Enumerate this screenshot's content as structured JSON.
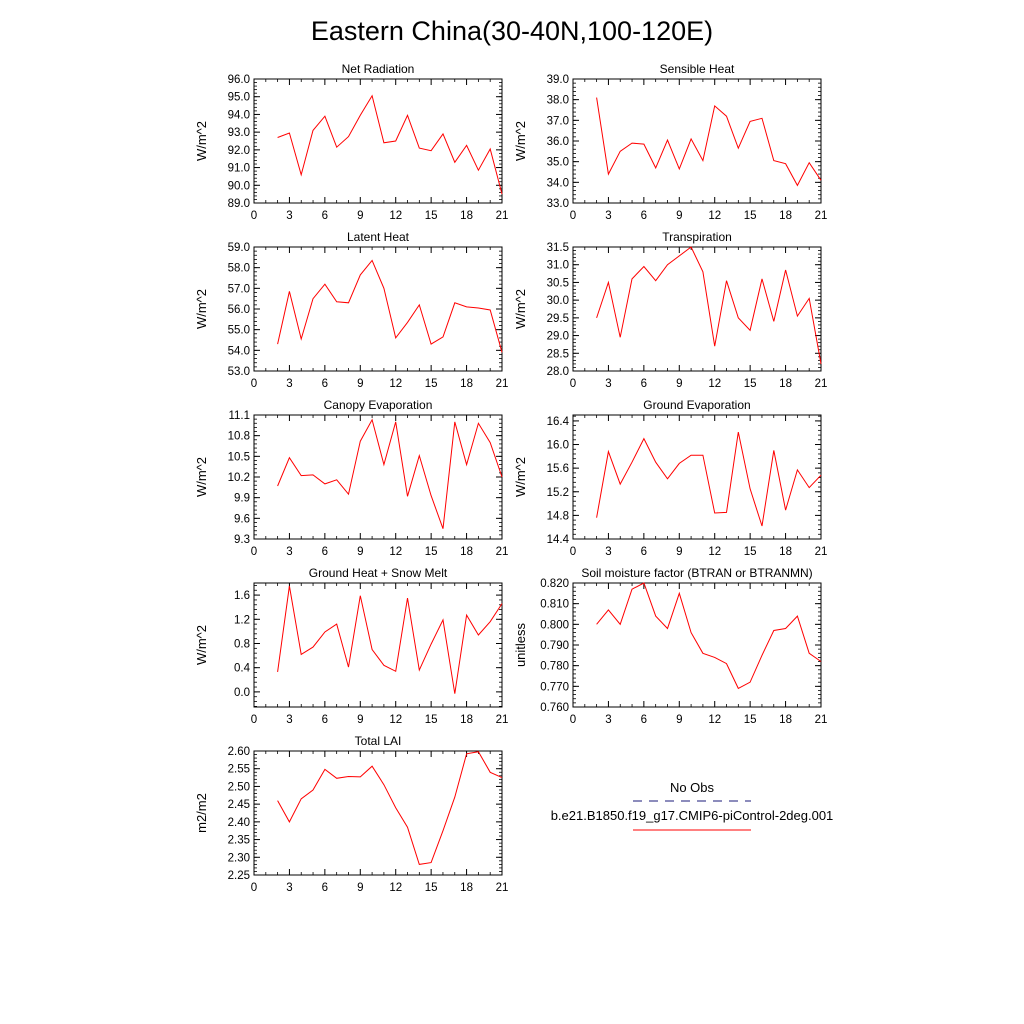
{
  "title": "Eastern China(30-40N,100-120E)",
  "legend": {
    "obs_label": "No Obs",
    "case_label": "b.e21.B1850.f19_g17.CMIP6-piControl-2deg.001",
    "obs_color": "#1a1a7a",
    "case_color": "#ff0000"
  },
  "chart_data": [
    {
      "type": "line",
      "title": "Net Radiation",
      "ylabel": "W/m^2",
      "xlim": [
        0,
        21
      ],
      "ylim": [
        89.0,
        96.0
      ],
      "xticks": [
        "0",
        "3",
        "6",
        "9",
        "12",
        "15",
        "18",
        "21"
      ],
      "yticks": [
        "89.0",
        "90.0",
        "91.0",
        "92.0",
        "93.0",
        "94.0",
        "95.0",
        "96.0"
      ],
      "series": [
        {
          "x": [
            2,
            3,
            4,
            5,
            6,
            7,
            8,
            9,
            10,
            11,
            12,
            13,
            14,
            15,
            16,
            17,
            18,
            19,
            20,
            21
          ],
          "values": [
            92.7,
            92.95,
            90.6,
            93.1,
            93.9,
            92.15,
            92.75,
            93.95,
            95.05,
            92.4,
            92.5,
            93.95,
            92.1,
            91.95,
            92.9,
            91.3,
            92.25,
            90.85,
            92.05,
            89.5
          ]
        }
      ]
    },
    {
      "type": "line",
      "title": "Sensible Heat",
      "ylabel": "W/m^2",
      "xlim": [
        0,
        21
      ],
      "ylim": [
        33.0,
        39.0
      ],
      "xticks": [
        "0",
        "3",
        "6",
        "9",
        "12",
        "15",
        "18",
        "21"
      ],
      "yticks": [
        "33.0",
        "34.0",
        "35.0",
        "36.0",
        "37.0",
        "38.0",
        "39.0"
      ],
      "series": [
        {
          "x": [
            2,
            3,
            4,
            5,
            6,
            7,
            8,
            9,
            10,
            11,
            12,
            13,
            14,
            15,
            16,
            17,
            18,
            19,
            20,
            21
          ],
          "values": [
            38.1,
            34.4,
            35.5,
            35.9,
            35.85,
            34.7,
            36.05,
            34.65,
            36.1,
            35.05,
            37.7,
            37.2,
            35.65,
            36.95,
            37.1,
            35.05,
            34.9,
            33.85,
            34.95,
            34.1
          ]
        }
      ]
    },
    {
      "type": "line",
      "title": "Latent Heat",
      "ylabel": "W/m^2",
      "xlim": [
        0,
        21
      ],
      "ylim": [
        53.0,
        59.0
      ],
      "xticks": [
        "0",
        "3",
        "6",
        "9",
        "12",
        "15",
        "18",
        "21"
      ],
      "yticks": [
        "53.0",
        "54.0",
        "55.0",
        "56.0",
        "57.0",
        "58.0",
        "59.0"
      ],
      "series": [
        {
          "x": [
            2,
            3,
            4,
            5,
            6,
            7,
            8,
            9,
            10,
            11,
            12,
            13,
            14,
            15,
            16,
            17,
            18,
            19,
            20,
            21
          ],
          "values": [
            54.3,
            56.85,
            54.55,
            56.5,
            57.2,
            56.35,
            56.3,
            57.65,
            58.35,
            57.0,
            54.6,
            55.35,
            56.2,
            54.3,
            54.65,
            56.3,
            56.1,
            56.05,
            55.95,
            53.9
          ]
        }
      ]
    },
    {
      "type": "line",
      "title": "Transpiration",
      "ylabel": "W/m^2",
      "xlim": [
        0,
        21
      ],
      "ylim": [
        28.0,
        31.5
      ],
      "xticks": [
        "0",
        "3",
        "6",
        "9",
        "12",
        "15",
        "18",
        "21"
      ],
      "yticks": [
        "28.0",
        "28.5",
        "29.0",
        "29.5",
        "30.0",
        "30.5",
        "31.0",
        "31.5"
      ],
      "series": [
        {
          "x": [
            2,
            3,
            4,
            5,
            6,
            7,
            8,
            9,
            10,
            11,
            12,
            13,
            14,
            15,
            16,
            17,
            18,
            19,
            20,
            21
          ],
          "values": [
            29.5,
            30.5,
            28.95,
            30.6,
            30.95,
            30.55,
            31.0,
            31.25,
            31.5,
            30.8,
            28.7,
            30.55,
            29.5,
            29.15,
            30.6,
            29.4,
            30.85,
            29.55,
            30.05,
            28.2
          ]
        }
      ]
    },
    {
      "type": "line",
      "title": "Canopy Evaporation",
      "ylabel": "W/m^2",
      "xlim": [
        0,
        21
      ],
      "ylim": [
        9.3,
        11.1
      ],
      "xticks": [
        "0",
        "3",
        "6",
        "9",
        "12",
        "15",
        "18",
        "21"
      ],
      "yticks": [
        "9.3",
        "9.6",
        "9.9",
        "10.2",
        "10.5",
        "10.8",
        "11.1"
      ],
      "series": [
        {
          "x": [
            2,
            3,
            4,
            5,
            6,
            7,
            8,
            9,
            10,
            11,
            12,
            13,
            14,
            15,
            16,
            17,
            18,
            19,
            20,
            21
          ],
          "values": [
            10.07,
            10.48,
            10.22,
            10.23,
            10.1,
            10.16,
            9.95,
            10.72,
            11.03,
            10.38,
            11.0,
            9.92,
            10.51,
            9.93,
            9.45,
            11.0,
            10.38,
            10.98,
            10.7,
            10.2
          ]
        }
      ]
    },
    {
      "type": "line",
      "title": "Ground Evaporation",
      "ylabel": "W/m^2",
      "xlim": [
        0,
        21
      ],
      "ylim": [
        14.4,
        16.5
      ],
      "xticks": [
        "0",
        "3",
        "6",
        "9",
        "12",
        "15",
        "18",
        "21"
      ],
      "yticks": [
        "14.4",
        "14.8",
        "15.2",
        "15.6",
        "16.0",
        "16.4"
      ],
      "series": [
        {
          "x": [
            2,
            3,
            4,
            5,
            6,
            7,
            8,
            9,
            10,
            11,
            12,
            13,
            14,
            15,
            16,
            17,
            18,
            19,
            20,
            21
          ],
          "values": [
            14.76,
            15.88,
            15.33,
            15.7,
            16.1,
            15.7,
            15.42,
            15.68,
            15.82,
            15.82,
            14.84,
            14.85,
            16.21,
            15.25,
            14.62,
            15.9,
            14.89,
            15.57,
            15.27,
            15.48
          ]
        }
      ]
    },
    {
      "type": "line",
      "title": "Ground Heat + Snow Melt",
      "ylabel": "W/m^2",
      "xlim": [
        0,
        21
      ],
      "ylim": [
        -0.25,
        1.8
      ],
      "xticks": [
        "0",
        "3",
        "6",
        "9",
        "12",
        "15",
        "18",
        "21"
      ],
      "yticks": [
        "0.0",
        "0.4",
        "0.8",
        "1.2",
        "1.6"
      ],
      "series": [
        {
          "x": [
            2,
            3,
            4,
            5,
            6,
            7,
            8,
            9,
            10,
            11,
            12,
            13,
            14,
            15,
            16,
            17,
            18,
            19,
            20,
            21
          ],
          "values": [
            0.33,
            1.75,
            0.62,
            0.74,
            0.99,
            1.12,
            0.41,
            1.59,
            0.7,
            0.44,
            0.34,
            1.55,
            0.36,
            0.79,
            1.19,
            -0.03,
            1.27,
            0.94,
            1.16,
            1.46
          ]
        }
      ]
    },
    {
      "type": "line",
      "title": "Soil moisture factor (BTRAN or BTRANMN)",
      "ylabel": "unitless",
      "xlim": [
        0,
        21
      ],
      "ylim": [
        0.76,
        0.82
      ],
      "xticks": [
        "0",
        "3",
        "6",
        "9",
        "12",
        "15",
        "18",
        "21"
      ],
      "yticks": [
        "0.760",
        "0.770",
        "0.780",
        "0.790",
        "0.800",
        "0.810",
        "0.820"
      ],
      "series": [
        {
          "x": [
            2,
            3,
            4,
            5,
            6,
            7,
            8,
            9,
            10,
            11,
            12,
            13,
            14,
            15,
            16,
            17,
            18,
            19,
            20,
            21
          ],
          "values": [
            0.8,
            0.807,
            0.8,
            0.817,
            0.82,
            0.804,
            0.798,
            0.815,
            0.796,
            0.786,
            0.784,
            0.781,
            0.769,
            0.772,
            0.785,
            0.797,
            0.798,
            0.804,
            0.786,
            0.782
          ]
        }
      ]
    },
    {
      "type": "line",
      "title": "Total LAI",
      "ylabel": "m2/m2",
      "xlim": [
        0,
        21
      ],
      "ylim": [
        2.25,
        2.6
      ],
      "xticks": [
        "0",
        "3",
        "6",
        "9",
        "12",
        "15",
        "18",
        "21"
      ],
      "yticks": [
        "2.25",
        "2.30",
        "2.35",
        "2.40",
        "2.45",
        "2.50",
        "2.55",
        "2.60"
      ],
      "series": [
        {
          "x": [
            2,
            3,
            4,
            5,
            6,
            7,
            8,
            9,
            10,
            11,
            12,
            13,
            14,
            15,
            16,
            17,
            18,
            19,
            20,
            21
          ],
          "values": [
            2.46,
            2.4,
            2.465,
            2.49,
            2.548,
            2.523,
            2.528,
            2.527,
            2.557,
            2.505,
            2.44,
            2.385,
            2.28,
            2.285,
            2.375,
            2.47,
            2.592,
            2.598,
            2.54,
            2.525
          ]
        }
      ]
    }
  ]
}
